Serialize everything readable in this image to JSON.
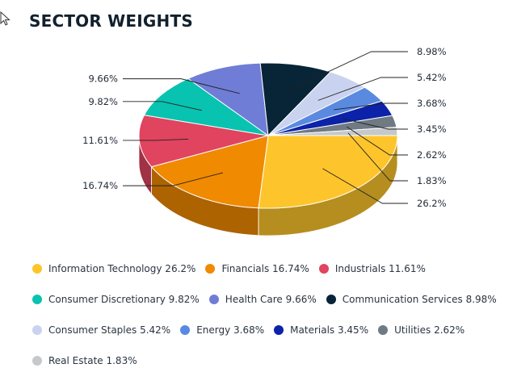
{
  "header": {
    "title": "SECTOR WEIGHTS"
  },
  "chart_data": {
    "type": "pie",
    "title": "SECTOR WEIGHTS",
    "unit": "%",
    "legend_position": "bottom",
    "series": [
      {
        "name": "Information Technology",
        "value": 26.2,
        "label": "26.2%",
        "legend": "Information Technology 26.2%",
        "color": "#fdc52b"
      },
      {
        "name": "Financials",
        "value": 16.74,
        "label": "16.74%",
        "legend": "Financials 16.74%",
        "color": "#f08a00"
      },
      {
        "name": "Industrials",
        "value": 11.61,
        "label": "11.61%",
        "legend": "Industrials 11.61%",
        "color": "#e0445f"
      },
      {
        "name": "Consumer Discretionary",
        "value": 9.82,
        "label": "9.82%",
        "legend": "Consumer Discretionary 9.82%",
        "color": "#08c3b0"
      },
      {
        "name": "Health Care",
        "value": 9.66,
        "label": "9.66%",
        "legend": "Health Care 9.66%",
        "color": "#6f7dd6"
      },
      {
        "name": "Communication Services",
        "value": 8.98,
        "label": "8.98%",
        "legend": "Communication Services 8.98%",
        "color": "#082437"
      },
      {
        "name": "Consumer Staples",
        "value": 5.42,
        "label": "5.42%",
        "legend": "Consumer Staples 5.42%",
        "color": "#c9d2ee"
      },
      {
        "name": "Energy",
        "value": 3.68,
        "label": "3.68%",
        "legend": "Energy 3.68%",
        "color": "#5a8ae0"
      },
      {
        "name": "Materials",
        "value": 3.45,
        "label": "3.45%",
        "legend": "Materials 3.45%",
        "color": "#0c22a8"
      },
      {
        "name": "Utilities",
        "value": 2.62,
        "label": "2.62%",
        "legend": "Utilities 2.62%",
        "color": "#707a83"
      },
      {
        "name": "Real Estate",
        "value": 1.83,
        "label": "1.83%",
        "legend": "Real Estate 1.83%",
        "color": "#c6c9cb"
      }
    ]
  }
}
